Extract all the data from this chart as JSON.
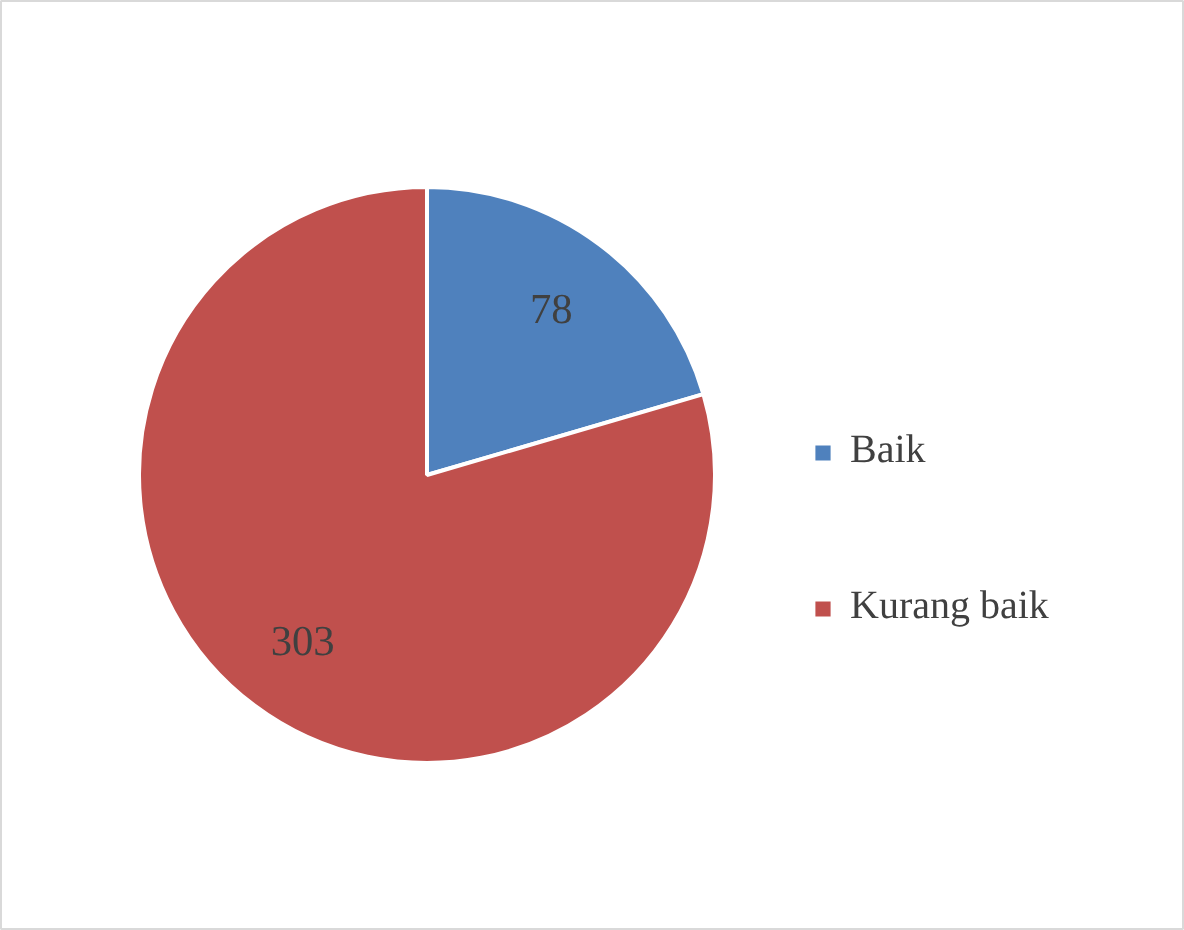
{
  "chart_data": {
    "type": "pie",
    "categories": [
      "Baik",
      "Kurang baik"
    ],
    "values": [
      78,
      303
    ],
    "colors": [
      "#4f81bd",
      "#c0504d"
    ],
    "data_labels": true,
    "legend": "right"
  }
}
